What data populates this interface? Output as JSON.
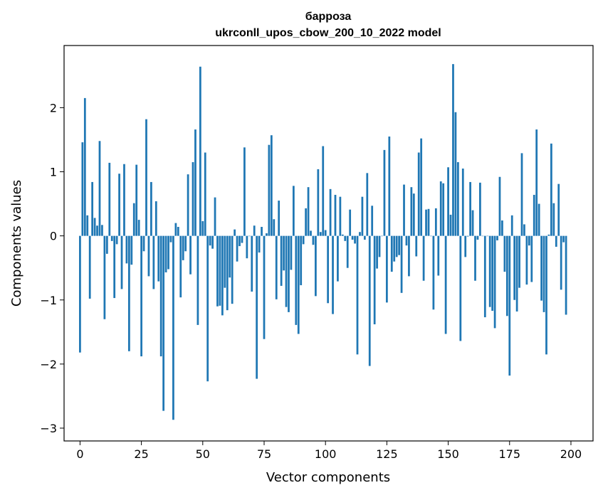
{
  "chart_data": {
    "type": "bar",
    "title": "барроза",
    "subtitle": "ukrconll_upos_cbow_200_10_2022 model",
    "xlabel": "Vector components",
    "ylabel": "Components values",
    "xlim": [
      -6.5,
      209
    ],
    "ylim": [
      -3.2,
      2.97
    ],
    "xticks": [
      0,
      25,
      50,
      75,
      100,
      125,
      150,
      175,
      200
    ],
    "yticks": [
      -3,
      -2,
      -1,
      0,
      1,
      2
    ],
    "grid": false,
    "bar_color": "#1f77b4",
    "values": [
      -1.82,
      1.46,
      2.15,
      0.32,
      -0.98,
      0.84,
      0.28,
      0.16,
      1.48,
      0.17,
      -1.3,
      -0.28,
      1.14,
      -0.08,
      -0.97,
      -0.13,
      0.97,
      -0.83,
      1.12,
      -0.43,
      -1.8,
      -0.45,
      0.51,
      1.11,
      0.25,
      -1.88,
      -0.24,
      1.82,
      -0.63,
      0.84,
      -0.83,
      0.54,
      -0.71,
      -1.88,
      -2.73,
      -0.57,
      -0.52,
      -0.1,
      -2.87,
      0.2,
      0.14,
      -0.96,
      -0.38,
      -0.24,
      0.96,
      -0.6,
      1.15,
      1.66,
      -1.39,
      2.64,
      0.23,
      1.3,
      -2.27,
      -0.15,
      -0.2,
      0.6,
      -1.1,
      -1.09,
      -1.24,
      -0.81,
      -1.16,
      -0.65,
      -1.06,
      0.1,
      -0.4,
      -0.16,
      -0.11,
      1.38,
      -0.35,
      0.0,
      -0.87,
      0.16,
      -2.23,
      -0.26,
      0.14,
      -1.61,
      0.04,
      1.42,
      1.57,
      0.26,
      -0.99,
      0.55,
      -0.78,
      -0.54,
      -1.11,
      -1.19,
      -0.53,
      0.78,
      -1.39,
      -1.53,
      -0.77,
      -0.13,
      0.43,
      0.76,
      0.08,
      -0.14,
      -0.94,
      1.04,
      0.06,
      1.4,
      0.09,
      -1.05,
      0.73,
      -1.22,
      0.64,
      -0.71,
      0.61,
      0.02,
      -0.08,
      -0.5,
      0.41,
      -0.06,
      -0.12,
      -1.85,
      0.06,
      0.61,
      -0.06,
      0.98,
      -2.03,
      0.47,
      -1.38,
      -0.51,
      -0.33,
      0.0,
      1.34,
      -1.04,
      1.55,
      -0.56,
      -0.4,
      -0.33,
      -0.3,
      -0.89,
      0.8,
      -0.15,
      -0.63,
      0.76,
      0.66,
      -0.32,
      1.3,
      1.52,
      -0.7,
      0.41,
      0.42,
      0.0,
      -1.15,
      0.43,
      -0.62,
      0.85,
      0.82,
      -1.53,
      1.07,
      0.33,
      2.68,
      1.93,
      1.15,
      -1.64,
      1.05,
      -0.33,
      -0.01,
      0.84,
      0.4,
      -0.7,
      -0.06,
      0.83,
      0.0,
      -1.27,
      0.0,
      -1.11,
      -1.17,
      -1.44,
      -0.07,
      0.92,
      0.24,
      -0.56,
      -1.25,
      -2.18,
      0.32,
      -1.0,
      -1.18,
      -0.81,
      1.29,
      0.18,
      -0.76,
      -0.15,
      -0.72,
      0.64,
      1.66,
      0.5,
      -1.01,
      -1.19,
      -1.85,
      0.02,
      1.44,
      0.51,
      -0.17,
      0.81,
      -0.84,
      -0.1,
      -1.23
    ]
  }
}
